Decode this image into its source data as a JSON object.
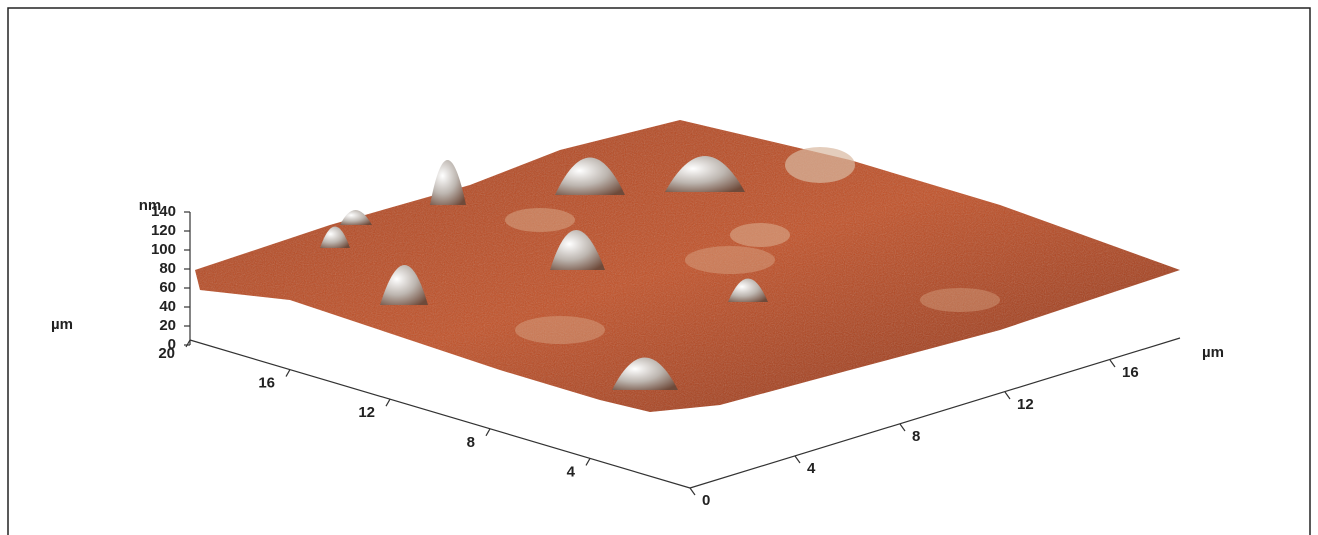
{
  "z_axis": {
    "unit": "nm",
    "ticks": [
      0,
      20,
      40,
      60,
      80,
      100,
      120,
      140
    ]
  },
  "left_axis": {
    "unit": "µm",
    "ticks": [
      20,
      16,
      12,
      8,
      4
    ]
  },
  "right_axis": {
    "unit": "µm",
    "ticks": [
      0,
      4,
      8,
      12,
      16
    ]
  }
}
